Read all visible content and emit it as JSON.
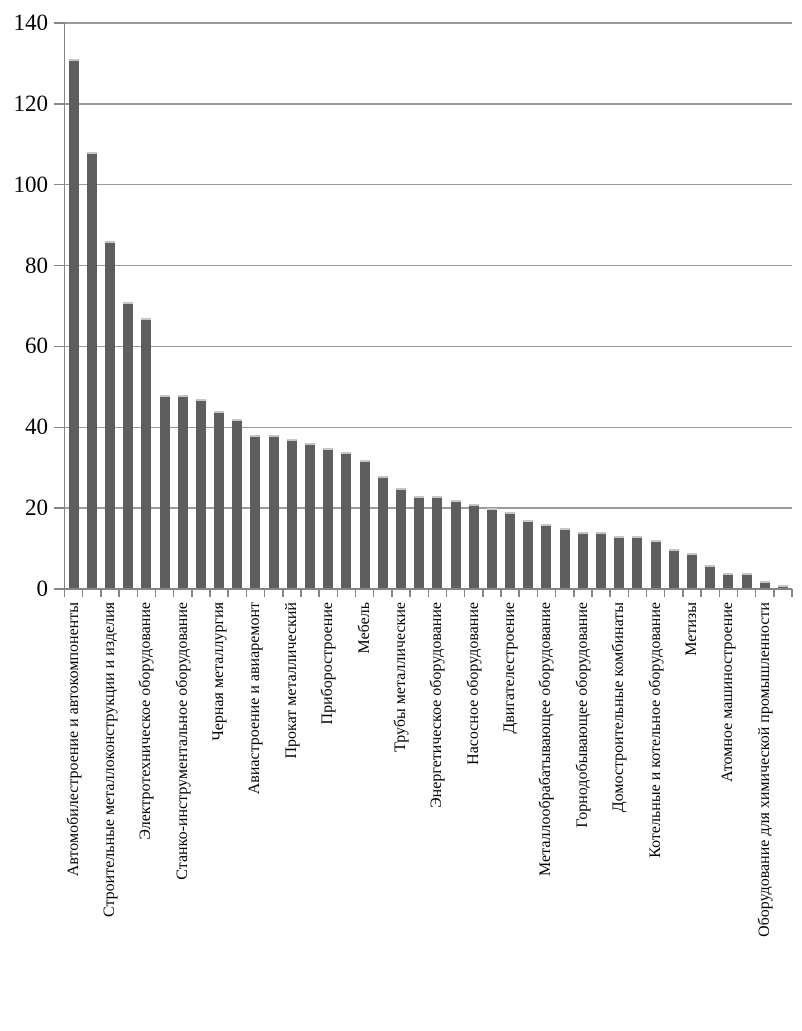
{
  "chart_data": {
    "type": "bar",
    "title": "",
    "xlabel": "",
    "ylabel": "",
    "legend": "none",
    "grid": "horizontal",
    "ylim": [
      0,
      140
    ],
    "y_ticks": [
      "0",
      "20",
      "40",
      "60",
      "80",
      "100",
      "120",
      "140"
    ],
    "x_label_every": 2,
    "bar_color": "#5e5e5e",
    "bar_top_edge_color": "#c6c6c6",
    "gridline_color": "#9a9a9a",
    "axis_color": "#858585",
    "text_color": "#000000",
    "bars": [
      {
        "label": "Автомобилестроение и автокомпоненты",
        "value": 131
      },
      {
        "label": "",
        "value": 108
      },
      {
        "label": "Строительные металлоконструкции и изделия",
        "value": 86
      },
      {
        "label": "",
        "value": 71
      },
      {
        "label": "Электротехническое оборудование",
        "value": 67
      },
      {
        "label": "",
        "value": 48
      },
      {
        "label": "Станко-инструментальное оборудование",
        "value": 48
      },
      {
        "label": "",
        "value": 47
      },
      {
        "label": "Черная металлургия",
        "value": 44
      },
      {
        "label": "",
        "value": 42
      },
      {
        "label": "Авиастроение и авиаремонт",
        "value": 38
      },
      {
        "label": "",
        "value": 38
      },
      {
        "label": "Прокат металлический",
        "value": 37
      },
      {
        "label": "",
        "value": 36
      },
      {
        "label": "Приборостроение",
        "value": 35
      },
      {
        "label": "",
        "value": 34
      },
      {
        "label": "Мебель",
        "value": 32
      },
      {
        "label": "",
        "value": 28
      },
      {
        "label": "Трубы металлические",
        "value": 25
      },
      {
        "label": "",
        "value": 23
      },
      {
        "label": "Энергетическое оборудование",
        "value": 23
      },
      {
        "label": "",
        "value": 22
      },
      {
        "label": "Насосное оборудование",
        "value": 21
      },
      {
        "label": "",
        "value": 20
      },
      {
        "label": "Двигателестроение",
        "value": 19
      },
      {
        "label": "",
        "value": 17
      },
      {
        "label": "Металлообрабатывающее оборудование",
        "value": 16
      },
      {
        "label": "",
        "value": 15
      },
      {
        "label": "Горнодобывающее оборудование",
        "value": 14
      },
      {
        "label": "",
        "value": 14
      },
      {
        "label": "Домостроительные комбинаты",
        "value": 13
      },
      {
        "label": "",
        "value": 13
      },
      {
        "label": "Котельные и котельное оборудование",
        "value": 12
      },
      {
        "label": "",
        "value": 10
      },
      {
        "label": "Метизы",
        "value": 9
      },
      {
        "label": "",
        "value": 6
      },
      {
        "label": "Атомное машиностроение",
        "value": 4
      },
      {
        "label": "",
        "value": 4
      },
      {
        "label": "Оборудование для химической промышленности",
        "value": 2
      },
      {
        "label": "",
        "value": 1
      }
    ]
  }
}
